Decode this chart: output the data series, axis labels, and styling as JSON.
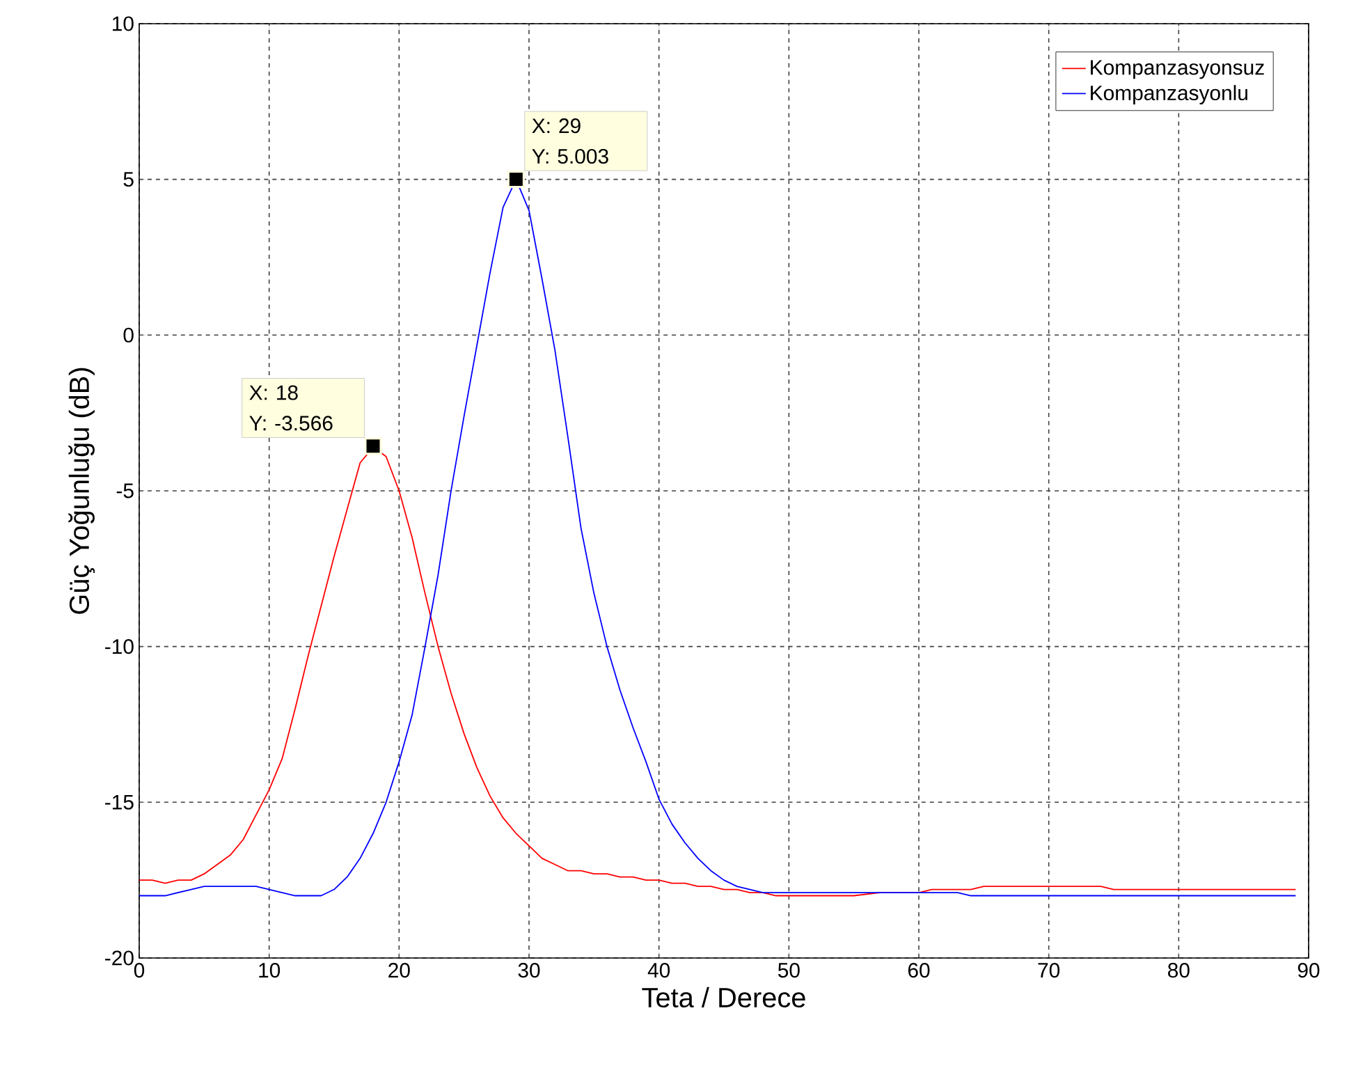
{
  "chart_data": {
    "type": "line",
    "xlabel": "Teta / Derece",
    "ylabel": "Güç Yoğunluğu (dB)",
    "xlim": [
      0,
      90
    ],
    "ylim": [
      -20,
      10
    ],
    "xticks": [
      0,
      10,
      20,
      30,
      40,
      50,
      60,
      70,
      80,
      90
    ],
    "yticks": [
      -20,
      -15,
      -10,
      -5,
      0,
      5,
      10
    ],
    "grid": true,
    "legend": "top right",
    "marker": "none",
    "line_style": "solid",
    "series": [
      {
        "name": "Kompanzasyonsuz",
        "color": "#ff0000",
        "x": [
          0,
          1,
          2,
          3,
          4,
          5,
          6,
          7,
          8,
          9,
          10,
          11,
          12,
          13,
          14,
          15,
          16,
          17,
          18,
          19,
          20,
          21,
          22,
          23,
          24,
          25,
          26,
          27,
          28,
          29,
          30,
          31,
          32,
          33,
          34,
          35,
          36,
          37,
          38,
          39,
          40,
          41,
          42,
          43,
          44,
          45,
          46,
          47,
          48,
          49,
          50,
          55,
          57,
          60,
          61,
          64,
          65,
          74,
          75,
          89
        ],
        "values": [
          -17.5,
          -17.5,
          -17.6,
          -17.5,
          -17.5,
          -17.3,
          -17.0,
          -16.7,
          -16.2,
          -15.4,
          -14.6,
          -13.6,
          -12.0,
          -10.3,
          -8.7,
          -7.1,
          -5.6,
          -4.1,
          -3.6,
          -3.9,
          -5.0,
          -6.5,
          -8.3,
          -10.0,
          -11.5,
          -12.8,
          -13.9,
          -14.8,
          -15.5,
          -16.0,
          -16.4,
          -16.8,
          -17.0,
          -17.2,
          -17.2,
          -17.3,
          -17.3,
          -17.4,
          -17.4,
          -17.5,
          -17.5,
          -17.6,
          -17.6,
          -17.7,
          -17.7,
          -17.8,
          -17.8,
          -17.9,
          -17.9,
          -18.0,
          -18.0,
          -18.0,
          -17.9,
          -17.9,
          -17.8,
          -17.8,
          -17.7,
          -17.7,
          -17.8,
          -17.8
        ]
      },
      {
        "name": "Kompanzasyonlu",
        "color": "#0000ff",
        "x": [
          0,
          2,
          4,
          5,
          9,
          10,
          11,
          12,
          14,
          15,
          16,
          17,
          18,
          19,
          20,
          21,
          22,
          23,
          24,
          25,
          26,
          27,
          28,
          29,
          30,
          31,
          32,
          33,
          34,
          35,
          36,
          37,
          38,
          39,
          40,
          41,
          42,
          43,
          44,
          45,
          46,
          47,
          48,
          50,
          63,
          64,
          89
        ],
        "values": [
          -18,
          -18,
          -17.8,
          -17.7,
          -17.7,
          -17.8,
          -17.9,
          -18,
          -18,
          -17.8,
          -17.4,
          -16.8,
          -16.0,
          -15.0,
          -13.7,
          -12.2,
          -10.0,
          -7.7,
          -5.0,
          -2.6,
          -0.3,
          2.0,
          4.1,
          5.0,
          4.0,
          1.8,
          -0.5,
          -3.3,
          -6.2,
          -8.3,
          -10.0,
          -11.4,
          -12.6,
          -13.7,
          -14.9,
          -15.7,
          -16.3,
          -16.8,
          -17.2,
          -17.5,
          -17.7,
          -17.8,
          -17.9,
          -17.9,
          -17.9,
          -18.0,
          -18.0
        ]
      }
    ],
    "annotations": [
      {
        "text": "X: 18\nY: -3.566",
        "x": 18,
        "y": -3.566
      },
      {
        "text": "X: 29\nY: 5.003",
        "x": 29,
        "y": 5.003
      }
    ]
  }
}
